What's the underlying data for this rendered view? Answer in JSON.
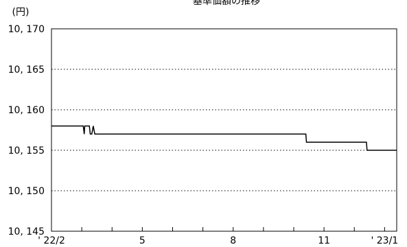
{
  "chart_data": {
    "type": "line",
    "title": "基準価額の推移",
    "ylabel": "(円)",
    "xlabel": "",
    "ylim": [
      10145,
      10170
    ],
    "yticks": [
      10145,
      10150,
      10155,
      10160,
      10165,
      10170
    ],
    "ytick_labels": [
      "10, 145",
      "10, 150",
      "10, 155",
      "10, 160",
      "10, 165",
      "10, 170"
    ],
    "xtick_labels": [
      {
        "label": "' 22/2",
        "month_index": 0
      },
      {
        "label": "5",
        "month_index": 3
      },
      {
        "label": "8",
        "month_index": 6
      },
      {
        "label": "11",
        "month_index": 9
      },
      {
        "label": "' 23/1",
        "month_index": 11
      }
    ],
    "grid": {
      "y": "dotted",
      "x": false
    },
    "line_color": "#000000",
    "series": [
      {
        "name": "",
        "x": [
          0.0,
          1.0,
          1.05,
          1.08,
          1.1,
          1.12,
          1.25,
          1.28,
          1.33,
          1.38,
          1.43,
          1.48,
          2.0,
          4.0,
          6.0,
          8.0,
          8.4,
          8.42,
          9.0,
          10.4,
          10.42,
          11.0,
          11.4
        ],
        "values": [
          10158,
          10158,
          10158,
          10157,
          10158,
          10158,
          10158,
          10157,
          10157,
          10158,
          10157,
          10157,
          10157,
          10157,
          10157,
          10157,
          10157,
          10156,
          10156,
          10156,
          10155,
          10155,
          10155
        ]
      }
    ]
  }
}
